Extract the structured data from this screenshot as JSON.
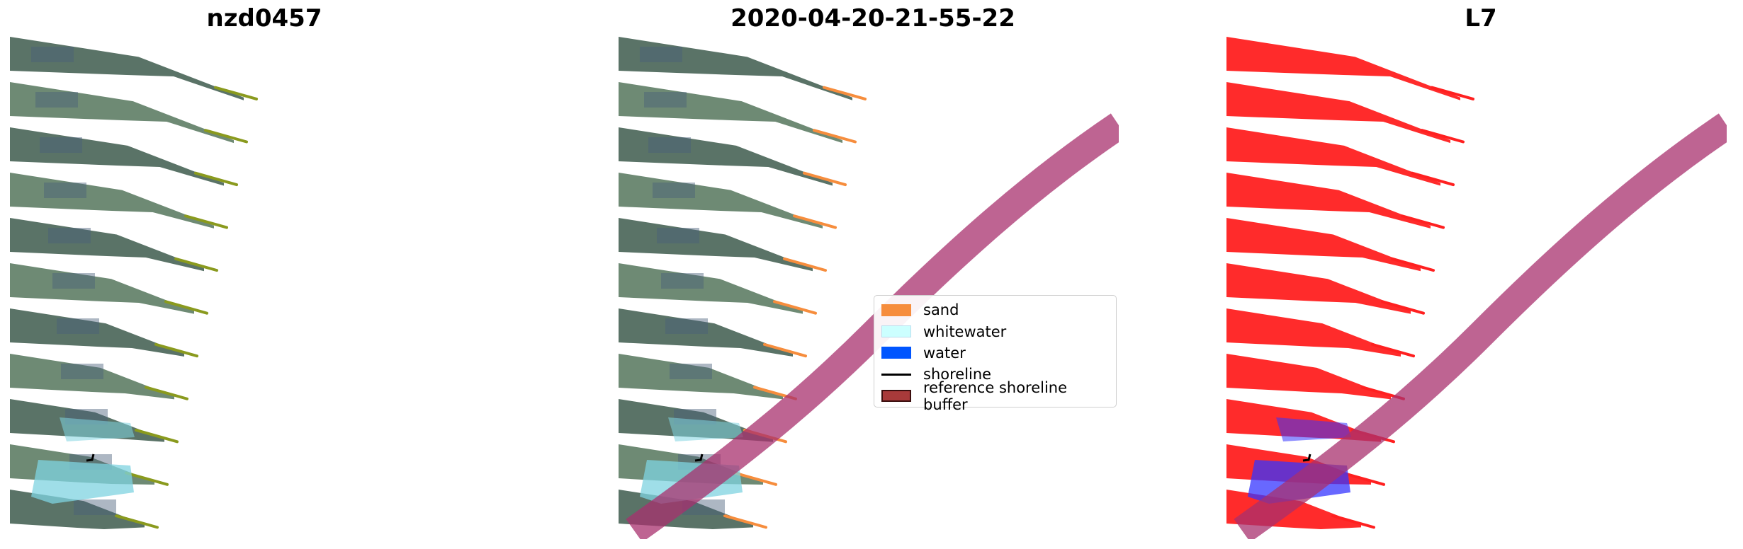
{
  "titles": [
    "nzd0457",
    "2020-04-20-21-55-22",
    "L7"
  ],
  "panels": [
    {
      "name": "rgb-image-panel",
      "style": "rgb",
      "shows_buffer": false
    },
    {
      "name": "classified-image-panel",
      "style": "classified",
      "shows_buffer": true
    },
    {
      "name": "mndwi-image-panel",
      "style": "mndwi",
      "shows_buffer": true
    }
  ],
  "legend": {
    "items": [
      {
        "label": "sand",
        "color": "#f68d3d",
        "kind": "patch"
      },
      {
        "label": "whitewater",
        "color": "#ccffff",
        "kind": "patch"
      },
      {
        "label": "water",
        "color": "#0055ff",
        "kind": "patch"
      },
      {
        "label": "shoreline",
        "color": "#000000",
        "kind": "line"
      },
      {
        "label": "reference shoreline buffer",
        "color": "#a83a3a",
        "kind": "patch"
      }
    ]
  },
  "colors": {
    "rgb_strip": "#5a7367",
    "rgb_strip_alt": "#6e8a74",
    "rgb_strip_tip": "#8a9a1e",
    "classified_tip": "#f68d3d",
    "mndwi_strip": "#ff2020",
    "mndwi_water": "#3535ff",
    "whitewater": "#7fd3e0",
    "buffer_overlay": "#a8306e"
  }
}
